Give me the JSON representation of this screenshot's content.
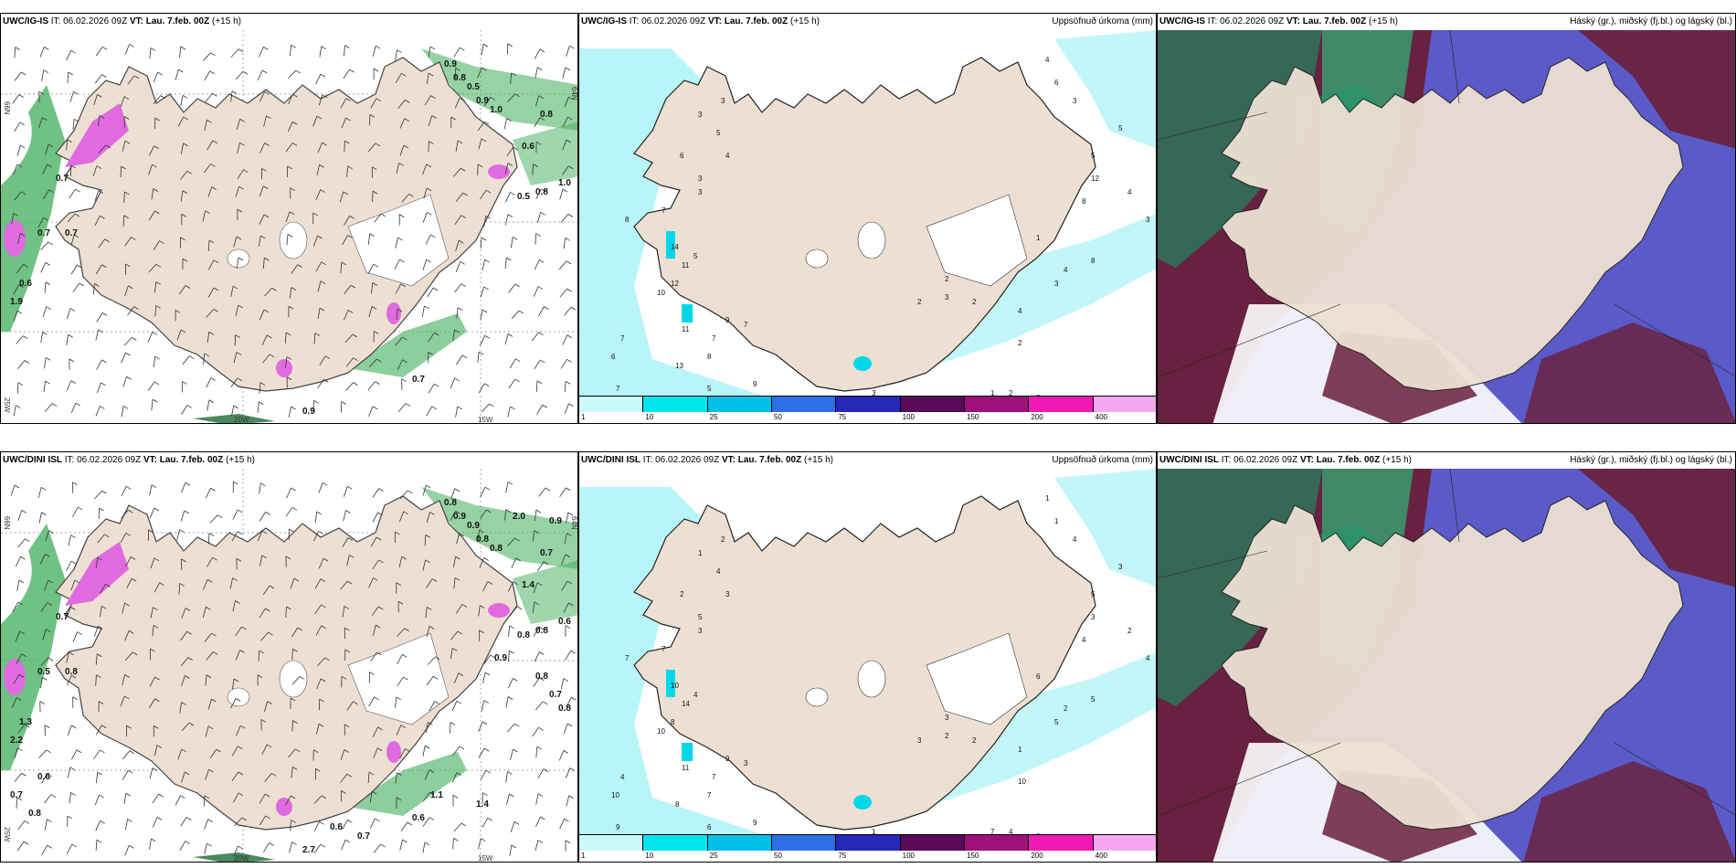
{
  "rows": [
    {
      "model": "UWC/IG-IS",
      "it_label": "IT:",
      "it_value": "06.02.2026 09Z",
      "vt_label": "VT:",
      "vt_value": "Lau. 7.feb. 00Z",
      "lead": "(+15 h)",
      "left_labels": [
        "0.9",
        "0.8",
        "0.5",
        "0.9",
        "1.0",
        "0.8",
        "0.6",
        "0.5",
        "0.8",
        "1.0",
        "0.7",
        "0.7",
        "0.7",
        "0.6",
        "1.9",
        "0.7",
        "0.9"
      ],
      "precip_labels": [
        "3",
        "3",
        "6",
        "5",
        "4",
        "3",
        "7",
        "8",
        "5",
        "3",
        "14",
        "11",
        "12",
        "10",
        "7",
        "6",
        "7",
        "13",
        "11",
        "7",
        "9",
        "5",
        "8",
        "9",
        "5",
        "7",
        "4",
        "3",
        "3",
        "4",
        "6",
        "3",
        "1",
        "5",
        "12",
        "8",
        "8",
        "4",
        "3",
        "4",
        "2",
        "3",
        "2",
        "2",
        "1",
        "2",
        "2",
        "2",
        "2",
        "5",
        "4",
        "3"
      ]
    },
    {
      "model": "UWC/DINI ISL",
      "it_label": "IT:",
      "it_value": "06.02.2026 09Z",
      "vt_label": "VT:",
      "vt_value": "Lau. 7.feb. 00Z",
      "lead": "(+15 h)",
      "left_labels": [
        "0.8",
        "0.9",
        "0.9",
        "0.8",
        "0.8",
        "0.7",
        "1.4",
        "0.8",
        "0.8",
        "0.6",
        "0.6",
        "0.7",
        "0.5",
        "1.3",
        "2.2",
        "0.8",
        "2.7",
        "0.9",
        "1.4",
        "2.0",
        "0.9",
        "0.8",
        "0.7",
        "0.8",
        "0.6",
        "0.7",
        "0.8",
        "0.6",
        "0.7",
        "1.1"
      ],
      "precip_labels": [
        "2",
        "1",
        "2",
        "4",
        "3",
        "5",
        "7",
        "7",
        "4",
        "3",
        "10",
        "14",
        "8",
        "10",
        "4",
        "10",
        "9",
        "8",
        "11",
        "7",
        "9",
        "6",
        "7",
        "9",
        "11",
        "3",
        "2",
        "2",
        "1",
        "1",
        "1",
        "4",
        "6",
        "5",
        "3",
        "4",
        "5",
        "2",
        "5",
        "1",
        "3",
        "2",
        "2",
        "3",
        "7",
        "4",
        "3",
        "8",
        "10",
        "3",
        "2",
        "4"
      ]
    }
  ],
  "precip_title": "Uppsöfnuð úrkoma (mm)",
  "cloud_title": "Háský (gr.), miðský (fj.bl.) og lágský (bl.)",
  "legend": {
    "ticks": [
      "1",
      "10",
      "25",
      "50",
      "75",
      "100",
      "150",
      "200",
      "400"
    ],
    "colors": [
      "#ccf9fb",
      "#00e5ee",
      "#00bfe8",
      "#2f6fe6",
      "#2828b8",
      "#5a0a5a",
      "#a0107a",
      "#f019b4",
      "#f5a8f0"
    ]
  },
  "lon_labels": {
    "w20": "20W",
    "w15": "15W",
    "w25": "25W",
    "w66": "66N",
    "w64": "64N"
  },
  "colors": {
    "land": "#ede0d3",
    "precip": "#b8f5f8",
    "green": "#3fae5a",
    "magenta": "#e06be0",
    "cloud_high": "#6a1f3a",
    "cloud_mid": "#2b7a5a",
    "cloud_low": "#5a5ac8"
  }
}
